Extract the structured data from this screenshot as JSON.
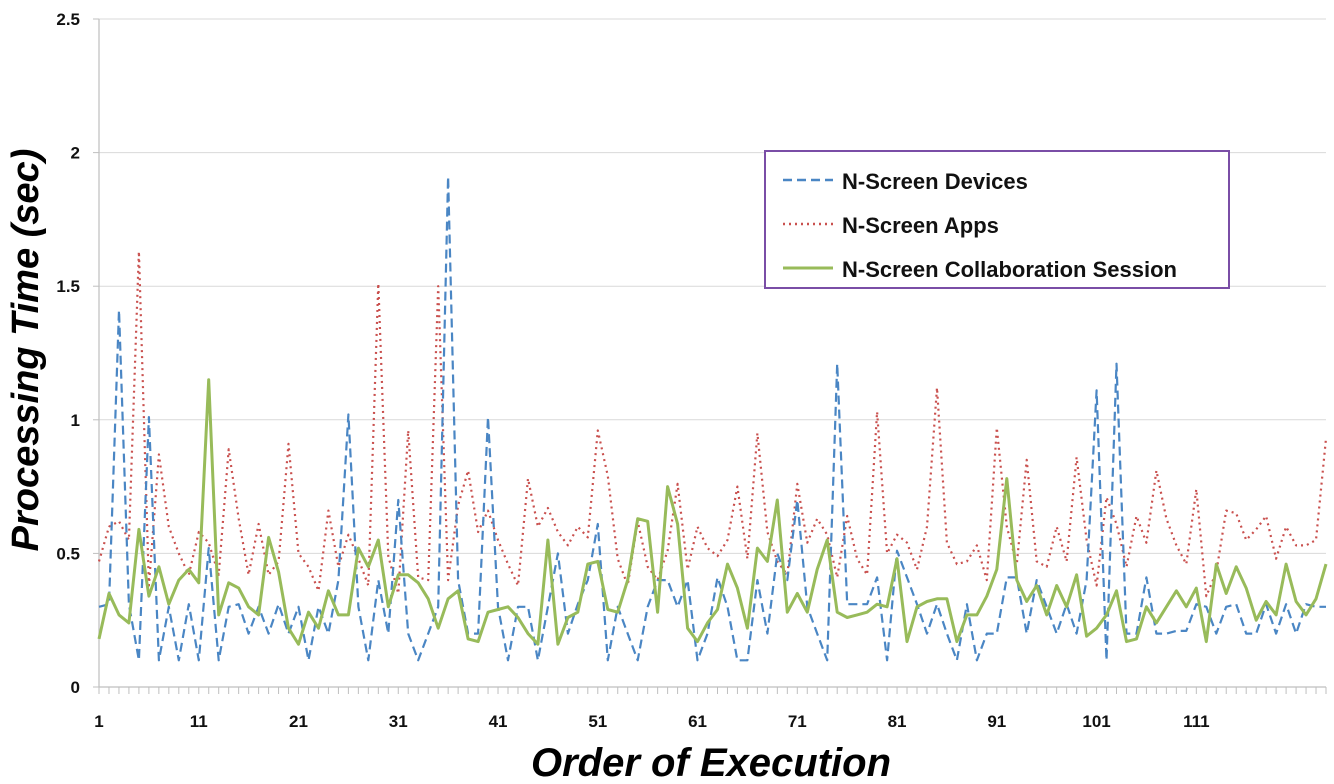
{
  "chart_data": {
    "type": "line",
    "xlabel": "Order of Execution",
    "ylabel": "Processing Time (sec)",
    "xlim": [
      1,
      124
    ],
    "ylim": [
      0,
      2.5
    ],
    "y_ticks": [
      "0",
      "0.5",
      "1",
      "1.5",
      "2",
      "2.5"
    ],
    "x_tick_labels": [
      "1",
      "11",
      "21",
      "31",
      "41",
      "51",
      "61",
      "71",
      "81",
      "91",
      "101",
      "111"
    ],
    "grid": "horizontal",
    "legend_position": "top-right",
    "colors": {
      "devices": "#4a86c4",
      "apps": "#c9504e",
      "session": "#98bb5a",
      "legend_border": "#7a4ea6",
      "grid": "#d9d9d9"
    },
    "x": [
      1,
      2,
      3,
      4,
      5,
      6,
      7,
      8,
      9,
      10,
      11,
      12,
      13,
      14,
      15,
      16,
      17,
      18,
      19,
      20,
      21,
      22,
      23,
      24,
      25,
      26,
      27,
      28,
      29,
      30,
      31,
      32,
      33,
      34,
      35,
      36,
      37,
      38,
      39,
      40,
      41,
      42,
      43,
      44,
      45,
      46,
      47,
      48,
      49,
      50,
      51,
      52,
      53,
      54,
      55,
      56,
      57,
      58,
      59,
      60,
      61,
      62,
      63,
      64,
      65,
      66,
      67,
      68,
      69,
      70,
      71,
      72,
      73,
      74,
      75,
      76,
      77,
      78,
      79,
      80,
      81,
      82,
      83,
      84,
      85,
      86,
      87,
      88,
      89,
      90,
      91,
      92,
      93,
      94,
      95,
      96,
      97,
      98,
      99,
      100,
      101,
      102,
      103,
      104,
      105,
      106,
      107,
      108,
      109,
      110,
      111,
      112,
      113,
      114,
      115,
      116,
      117,
      118,
      119,
      120,
      121,
      122,
      123,
      124
    ],
    "series": [
      {
        "name": "N-Screen Devices",
        "style": "dashed",
        "values": [
          0.3,
          0.31,
          1.41,
          0.31,
          0.1,
          1.01,
          0.1,
          0.3,
          0.1,
          0.31,
          0.1,
          0.52,
          0.1,
          0.3,
          0.31,
          0.2,
          0.3,
          0.2,
          0.31,
          0.2,
          0.3,
          0.1,
          0.3,
          0.2,
          0.4,
          1.02,
          0.3,
          0.1,
          0.4,
          0.2,
          0.7,
          0.2,
          0.1,
          0.2,
          0.3,
          1.91,
          0.4,
          0.2,
          0.2,
          1.01,
          0.3,
          0.1,
          0.3,
          0.3,
          0.1,
          0.3,
          0.5,
          0.2,
          0.31,
          0.4,
          0.61,
          0.1,
          0.3,
          0.2,
          0.1,
          0.3,
          0.4,
          0.4,
          0.3,
          0.4,
          0.1,
          0.2,
          0.41,
          0.3,
          0.1,
          0.1,
          0.4,
          0.2,
          0.5,
          0.4,
          0.7,
          0.3,
          0.2,
          0.1,
          1.21,
          0.31,
          0.31,
          0.31,
          0.41,
          0.1,
          0.51,
          0.41,
          0.31,
          0.2,
          0.31,
          0.2,
          0.1,
          0.31,
          0.1,
          0.2,
          0.2,
          0.41,
          0.41,
          0.2,
          0.4,
          0.3,
          0.2,
          0.31,
          0.2,
          0.4,
          1.11,
          0.1,
          1.21,
          0.2,
          0.2,
          0.41,
          0.2,
          0.2,
          0.21,
          0.21,
          0.31,
          0.3,
          0.2,
          0.3,
          0.31,
          0.2,
          0.2,
          0.31,
          0.2,
          0.31,
          0.2,
          0.31,
          0.3,
          0.3
        ]
      },
      {
        "name": "N-Screen Apps",
        "style": "dotted",
        "values": [
          0.47,
          0.6,
          0.62,
          0.55,
          1.63,
          0.38,
          0.87,
          0.6,
          0.5,
          0.42,
          0.58,
          0.54,
          0.42,
          0.89,
          0.63,
          0.42,
          0.61,
          0.42,
          0.47,
          0.91,
          0.5,
          0.45,
          0.36,
          0.66,
          0.45,
          0.57,
          0.48,
          0.38,
          1.51,
          0.49,
          0.35,
          0.96,
          0.41,
          0.4,
          1.5,
          0.4,
          0.68,
          0.81,
          0.58,
          0.66,
          0.55,
          0.46,
          0.38,
          0.78,
          0.6,
          0.67,
          0.58,
          0.53,
          0.6,
          0.56,
          0.96,
          0.79,
          0.48,
          0.38,
          0.62,
          0.45,
          0.4,
          0.51,
          0.76,
          0.44,
          0.6,
          0.52,
          0.49,
          0.55,
          0.75,
          0.48,
          0.95,
          0.58,
          0.47,
          0.42,
          0.76,
          0.54,
          0.63,
          0.57,
          0.41,
          0.64,
          0.48,
          0.42,
          1.03,
          0.5,
          0.57,
          0.54,
          0.44,
          0.6,
          1.12,
          0.54,
          0.46,
          0.47,
          0.53,
          0.4,
          0.97,
          0.6,
          0.46,
          0.85,
          0.47,
          0.45,
          0.6,
          0.47,
          0.86,
          0.55,
          0.38,
          0.71,
          0.61,
          0.45,
          0.64,
          0.54,
          0.81,
          0.63,
          0.53,
          0.46,
          0.74,
          0.34,
          0.43,
          0.66,
          0.65,
          0.55,
          0.59,
          0.64,
          0.48,
          0.6,
          0.53,
          0.53,
          0.55,
          0.93
        ]
      },
      {
        "name": "N-Screen Collaboration Session",
        "style": "solid",
        "values": [
          0.18,
          0.35,
          0.27,
          0.24,
          0.59,
          0.34,
          0.45,
          0.31,
          0.4,
          0.44,
          0.39,
          1.15,
          0.27,
          0.39,
          0.37,
          0.3,
          0.27,
          0.56,
          0.43,
          0.22,
          0.16,
          0.28,
          0.22,
          0.36,
          0.27,
          0.27,
          0.52,
          0.45,
          0.55,
          0.3,
          0.42,
          0.42,
          0.39,
          0.33,
          0.22,
          0.33,
          0.36,
          0.18,
          0.17,
          0.28,
          0.29,
          0.3,
          0.26,
          0.2,
          0.16,
          0.55,
          0.16,
          0.26,
          0.28,
          0.46,
          0.47,
          0.29,
          0.28,
          0.4,
          0.63,
          0.62,
          0.28,
          0.75,
          0.61,
          0.22,
          0.17,
          0.24,
          0.29,
          0.46,
          0.37,
          0.22,
          0.52,
          0.47,
          0.7,
          0.28,
          0.35,
          0.28,
          0.44,
          0.55,
          0.28,
          0.26,
          0.27,
          0.28,
          0.31,
          0.3,
          0.48,
          0.17,
          0.3,
          0.32,
          0.33,
          0.33,
          0.17,
          0.27,
          0.27,
          0.34,
          0.44,
          0.78,
          0.4,
          0.32,
          0.38,
          0.27,
          0.38,
          0.3,
          0.42,
          0.19,
          0.22,
          0.27,
          0.36,
          0.17,
          0.18,
          0.3,
          0.24,
          0.3,
          0.36,
          0.3,
          0.37,
          0.17,
          0.46,
          0.35,
          0.45,
          0.37,
          0.25,
          0.32,
          0.27,
          0.46,
          0.32,
          0.27,
          0.33,
          0.46
        ]
      }
    ]
  }
}
